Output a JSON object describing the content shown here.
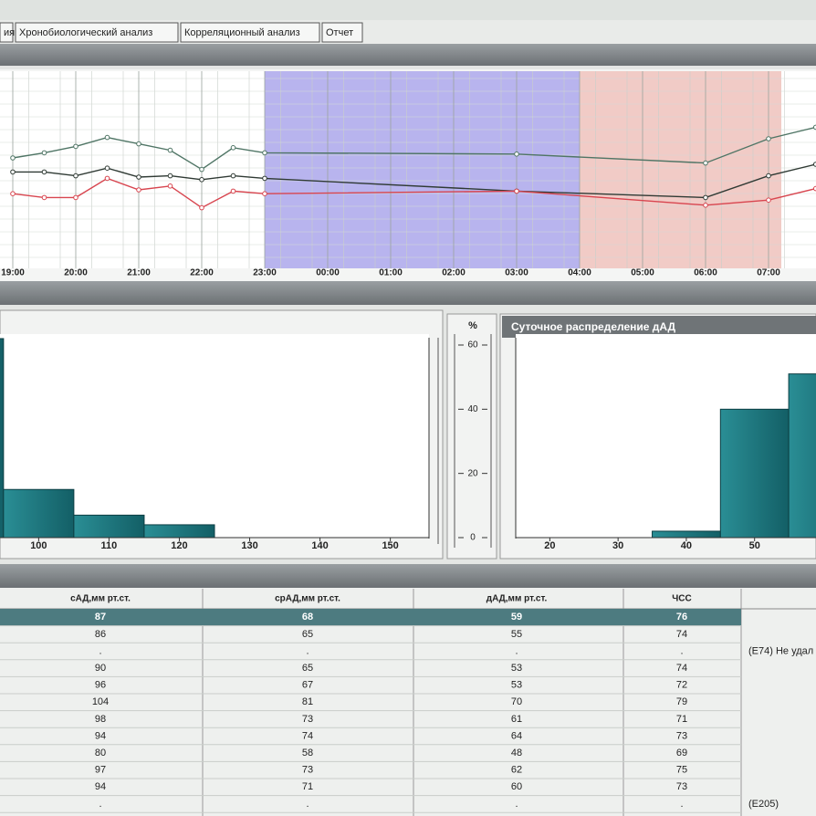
{
  "tabs": [
    "ия",
    "Хронобиологический анализ",
    "Корреляционный анализ",
    "Отчет"
  ],
  "trend_chart": {
    "type": "line",
    "x": [
      "19:00",
      "19:30",
      "20:00",
      "20:30",
      "21:00",
      "21:30",
      "22:00",
      "22:30",
      "23:00",
      "03:00",
      "06:00",
      "07:00",
      "07:45"
    ],
    "series": [
      {
        "name": "сАД",
        "color": "#4f7565",
        "values": [
          85,
          89,
          94,
          101,
          96,
          91,
          76,
          93,
          89,
          88,
          81,
          100,
          109
        ]
      },
      {
        "name": "срАД",
        "color": "#2f3a34",
        "values": [
          74,
          74,
          71,
          77,
          70,
          71,
          68,
          71,
          69,
          59,
          54,
          71,
          80
        ]
      },
      {
        "name": "дАД",
        "color": "#d8454f",
        "values": [
          57,
          54,
          54,
          69,
          60,
          63,
          46,
          59,
          57,
          59,
          48,
          52,
          61
        ]
      }
    ],
    "xticks": [
      "19:00",
      "20:00",
      "21:00",
      "22:00",
      "23:00",
      "00:00",
      "01:00",
      "02:00",
      "03:00",
      "04:00",
      "05:00",
      "06:00",
      "07:00"
    ],
    "ylim": [
      0,
      150
    ]
  },
  "percent_axis": {
    "label": "%",
    "ylim": [
      0,
      60
    ],
    "yticks": [
      0,
      20,
      40,
      60
    ]
  },
  "sys_histogram": {
    "type": "histogram",
    "bins": [
      85,
      95,
      105,
      115,
      125
    ],
    "values": [
      62,
      15,
      7,
      4
    ],
    "xlim": [
      94.5,
      155.5
    ],
    "xticks": [
      100,
      110,
      120,
      130,
      140,
      150
    ]
  },
  "dia_histogram": {
    "type": "histogram",
    "title": "Суточное распределение дАД",
    "bins": [
      35,
      45,
      55,
      65
    ],
    "values": [
      2,
      40,
      51
    ],
    "xlim": [
      15,
      59
    ],
    "xticks": [
      20,
      30,
      40,
      50
    ]
  },
  "table": {
    "columns": [
      "сАД,мм рт.ст.",
      "срАД,мм рт.ст.",
      "дАД,мм рт.ст.",
      "ЧСС"
    ],
    "rows": [
      {
        "cells": [
          "87",
          "68",
          "59",
          "76"
        ]
      },
      {
        "cells": [
          "86",
          "65",
          "55",
          "74"
        ]
      },
      {
        "cells": [
          ".",
          ".",
          ".",
          "."
        ],
        "note": "(E74) Не удал"
      },
      {
        "cells": [
          "90",
          "65",
          "53",
          "74"
        ]
      },
      {
        "cells": [
          "96",
          "67",
          "53",
          "72"
        ]
      },
      {
        "cells": [
          "104",
          "81",
          "70",
          "79"
        ]
      },
      {
        "cells": [
          "98",
          "73",
          "61",
          "71"
        ]
      },
      {
        "cells": [
          "94",
          "74",
          "64",
          "73"
        ]
      },
      {
        "cells": [
          "80",
          "58",
          "48",
          "69"
        ]
      },
      {
        "cells": [
          "97",
          "73",
          "62",
          "75"
        ]
      },
      {
        "cells": [
          "94",
          "71",
          "60",
          "73"
        ]
      },
      {
        "cells": [
          ".",
          ".",
          ".",
          "."
        ],
        "note": "(E205)"
      }
    ]
  }
}
